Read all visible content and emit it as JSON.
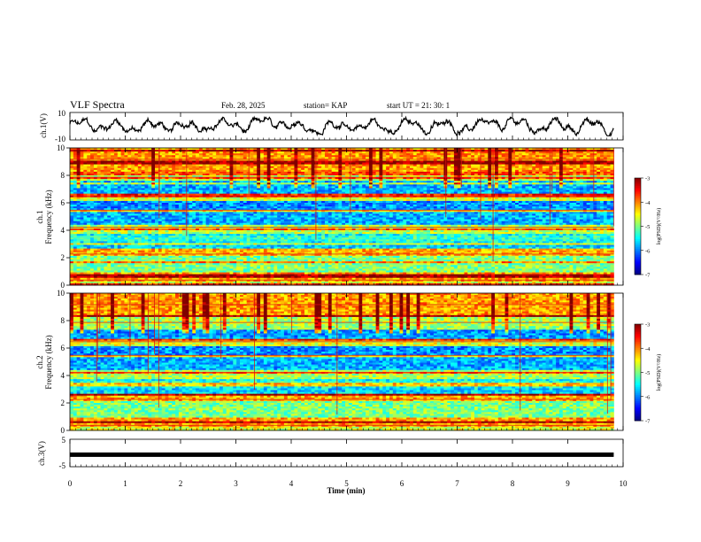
{
  "header": {
    "title": "VLF Spectra",
    "date": "Feb. 28, 2025",
    "station": "station= KAP",
    "start": "start  UT  =   21: 30: 1"
  },
  "chart_data": [
    {
      "type": "line",
      "panel": "ch1-waveform",
      "ylabel": "ch.1(V)",
      "ylim": [
        -10,
        10
      ],
      "yticks": [
        "10",
        "-10"
      ],
      "x_range": [
        0,
        9.83
      ],
      "x_unit": "min",
      "description_values": "noisy waveform oscillating roughly between -7 and 8 V"
    },
    {
      "type": "heatmap",
      "panel": "ch1-spectrogram",
      "ylabel_top": "ch.1",
      "ylabel": "Frequency (kHz)",
      "ylim": [
        0,
        10
      ],
      "yticks": [
        "0",
        "2",
        "4",
        "6",
        "8",
        "10"
      ],
      "colorbar": {
        "label": "log(PSD)(V²/Hz)",
        "range": [
          -7,
          -3
        ],
        "ticks": [
          "-3",
          "-4",
          "-5",
          "-6",
          "-7"
        ]
      }
    },
    {
      "type": "heatmap",
      "panel": "ch2-spectrogram",
      "ylabel_top": "ch.2",
      "ylabel": "Frequency (kHz)",
      "ylim": [
        0,
        10
      ],
      "yticks": [
        "0",
        "2",
        "4",
        "6",
        "8",
        "10"
      ],
      "colorbar": {
        "label": "log(PSD)(V²/Hz)",
        "range": [
          -7,
          -3
        ],
        "ticks": [
          "-3",
          "-4",
          "-5",
          "-6",
          "-7"
        ]
      }
    },
    {
      "type": "line",
      "panel": "ch3-waveform",
      "ylabel": "ch.3(V)",
      "ylim": [
        -5,
        5
      ],
      "yticks": [
        "5",
        "0",
        "-5"
      ],
      "values_constant": -0.6
    }
  ],
  "xaxis": {
    "label": "Time (min)",
    "ticks": [
      "0",
      "1",
      "2",
      "3",
      "4",
      "5",
      "6",
      "7",
      "8",
      "9",
      "10"
    ],
    "range": [
      0,
      10
    ]
  },
  "colors": {
    "background": "#ffffff",
    "line": "#000000"
  }
}
